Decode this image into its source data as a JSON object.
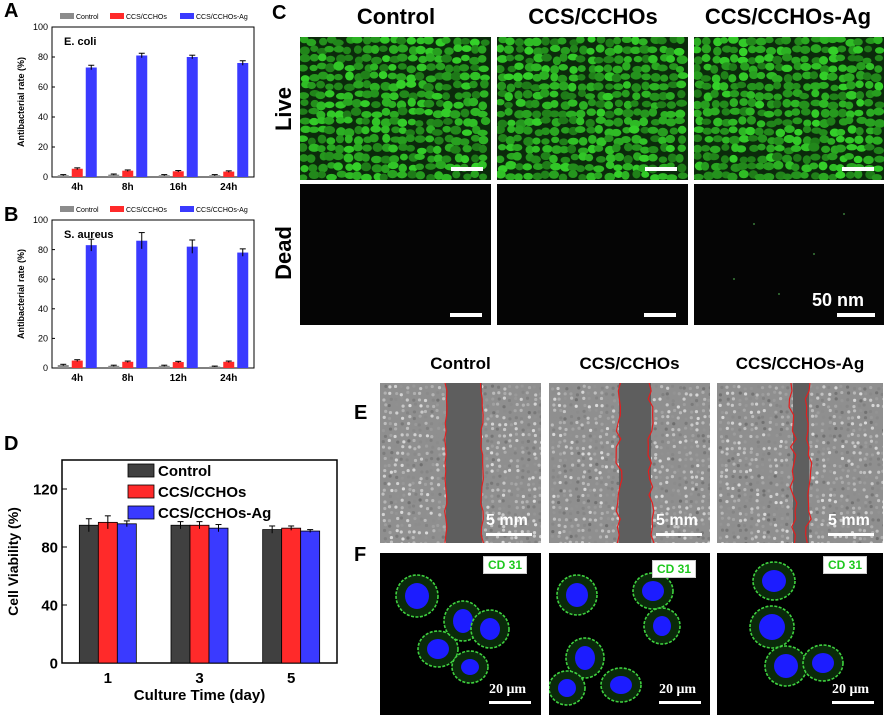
{
  "panels": {
    "A": "A",
    "B": "B",
    "C": "C",
    "D": "D",
    "E": "E",
    "F": "F"
  },
  "panel_c": {
    "columns": [
      "Control",
      "CCS/CCHOs",
      "CCS/CCHOs-Ag"
    ],
    "rows": [
      "Live",
      "Dead"
    ],
    "scale_label": "50 nm"
  },
  "panel_e": {
    "columns": [
      "Control",
      "CCS/CCHOs",
      "CCS/CCHOs-Ag"
    ],
    "scale_label": "5 mm"
  },
  "panel_f": {
    "badge": "CD 31",
    "scale_label": "20 μm"
  },
  "colors": {
    "control_small": "#8c8c8c",
    "ccs_cchos": "#ff2a2a",
    "ccs_cchos_ag": "#3a3aff",
    "control_d": "#404040",
    "live_green": "#2fae2f",
    "dead_bg": "#050505",
    "cd31_green": "#3fd23f",
    "nucleus_blue": "#1c1cff"
  },
  "chart_data": [
    {
      "type": "bar",
      "panel": "A",
      "annotation": "E. coli",
      "categories": [
        "4h",
        "8h",
        "16h",
        "24h"
      ],
      "series": [
        {
          "name": "Control",
          "values": [
            1.2,
            1.6,
            1.2,
            1.2
          ],
          "errors": [
            0.4,
            0.4,
            0.4,
            0.4
          ]
        },
        {
          "name": "CCS/CCHOs",
          "values": [
            5.5,
            4.2,
            3.8,
            3.6
          ],
          "errors": [
            0.6,
            0.5,
            0.5,
            0.5
          ]
        },
        {
          "name": "CCS/CCHOs-Ag",
          "values": [
            73,
            81,
            80,
            76
          ],
          "errors": [
            1.5,
            1.5,
            1.2,
            1.5
          ]
        }
      ],
      "ylabel": "Antibacterial rate (%)",
      "ylim": [
        0,
        100
      ],
      "yticks": [
        0,
        20,
        40,
        60,
        80,
        100
      ]
    },
    {
      "type": "bar",
      "panel": "B",
      "annotation": "S. aureus",
      "categories": [
        "4h",
        "8h",
        "12h",
        "24h"
      ],
      "series": [
        {
          "name": "Control",
          "values": [
            2.0,
            1.5,
            1.5,
            1.0
          ],
          "errors": [
            0.5,
            0.4,
            0.4,
            0.3
          ]
        },
        {
          "name": "CCS/CCHOs",
          "values": [
            5.0,
            4.2,
            4.0,
            4.2
          ],
          "errors": [
            0.6,
            0.5,
            0.5,
            0.5
          ]
        },
        {
          "name": "CCS/CCHOs-Ag",
          "values": [
            83,
            86,
            82,
            78
          ],
          "errors": [
            4,
            5.5,
            4.5,
            2.5
          ]
        }
      ],
      "ylabel": "Antibacterial rate (%)",
      "ylim": [
        0,
        100
      ],
      "yticks": [
        0,
        20,
        40,
        60,
        80,
        100
      ]
    },
    {
      "type": "bar",
      "panel": "D",
      "categories": [
        "1",
        "3",
        "5"
      ],
      "series": [
        {
          "name": "Control",
          "values": [
            95,
            95,
            92
          ],
          "errors": [
            4.5,
            2.5,
            2.5
          ]
        },
        {
          "name": "CCS/CCHOs",
          "values": [
            97,
            95,
            93
          ],
          "errors": [
            4.5,
            2.5,
            1.5
          ]
        },
        {
          "name": "CCS/CCHOs-Ag",
          "values": [
            96,
            93,
            91
          ],
          "errors": [
            2.0,
            2.5,
            1.0
          ]
        }
      ],
      "xlabel": "Culture Time (day)",
      "ylabel": "Cell Viability (%)",
      "ylim": [
        0,
        140
      ],
      "yticks": [
        0,
        40,
        80,
        120
      ]
    }
  ]
}
